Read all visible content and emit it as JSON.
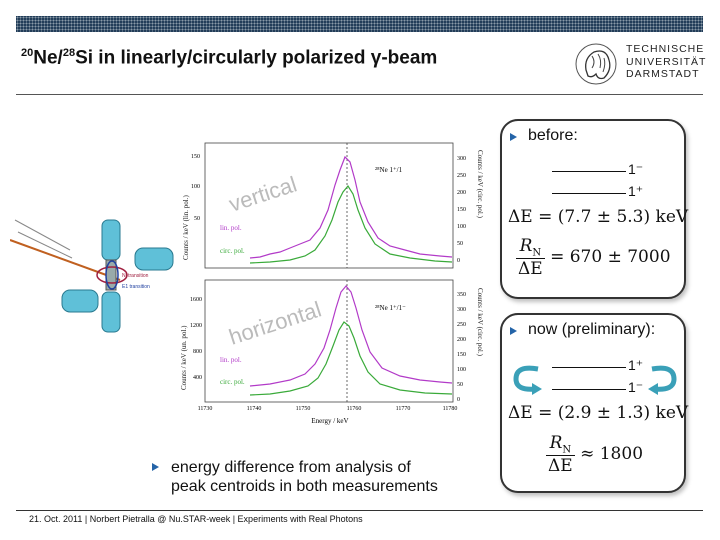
{
  "header": {
    "title_nucleus1_mass": "20",
    "title_nucleus1": "Ne/",
    "title_nucleus2_mass": "28",
    "title_rest": "Si in linearly/circularly polarized γ-beam",
    "logo_lines": [
      "TECHNISCHE",
      "UNIVERSITÄT",
      "DARMSTADT"
    ]
  },
  "figure": {
    "top_plot": {
      "watermark": "vertical",
      "y_left_label": "Counts / keV (lin. pol.)",
      "y_right_label": "Counts / keV (circ. pol.)",
      "left_ticks": [
        "150",
        "100",
        "50"
      ],
      "right_ticks": [
        "300",
        "250",
        "200",
        "150",
        "100",
        "50",
        "0"
      ],
      "transition": "²⁸Ne 1⁺/1",
      "legend": [
        "lin. pol.",
        "circ. pol."
      ]
    },
    "bottom_plot": {
      "watermark": "horizontal",
      "y_left_label": "Counts / keV (un. pol.)",
      "y_right_label": "Counts / keV (circ. pol.)",
      "left_ticks": [
        "1600",
        "1200",
        "800",
        "400"
      ],
      "right_ticks": [
        "350",
        "300",
        "250",
        "200",
        "150",
        "100",
        "50",
        "0"
      ],
      "transition": "²⁸Ne 1⁺/1⁻",
      "legend": [
        "lin. pol.",
        "circ. pol."
      ],
      "x_ticks": [
        "11730",
        "11740",
        "11750",
        "11760",
        "11770",
        "11780"
      ],
      "x_label": "Energy / keV"
    },
    "detector_labels": [
      "Ni transition",
      "E1 transition"
    ],
    "series_colors": {
      "lin": "#b23ac8",
      "circ": "#3aaa3a"
    }
  },
  "before_panel": {
    "label": "before:",
    "level_upper": "1⁻",
    "level_lower": "1⁺",
    "delta_e": "ΔE = (7.7 ± 5.3) keV",
    "ratio_num": "R",
    "ratio_num_sub": "N",
    "ratio_den": "ΔE",
    "ratio_value": "= 670 ± 7000"
  },
  "now_panel": {
    "label": "now (preliminary):",
    "level_upper": "1⁺",
    "level_lower": "1⁻",
    "delta_e": "ΔE = (2.9 ± 1.3) keV",
    "ratio_num": "R",
    "ratio_num_sub": "N",
    "ratio_den": "ΔE",
    "ratio_value": "≈ 1800"
  },
  "note": {
    "line1": "energy difference from analysis of",
    "line2": "peak centroids in both measurements"
  },
  "footer": {
    "text": "21. Oct. 2011  |  Norbert Pietralla @ Nu.STAR-week  |  Experiments with Real Photons"
  },
  "colors": {
    "bullet": "#2464a8",
    "header_bar": "#1e3a56"
  }
}
